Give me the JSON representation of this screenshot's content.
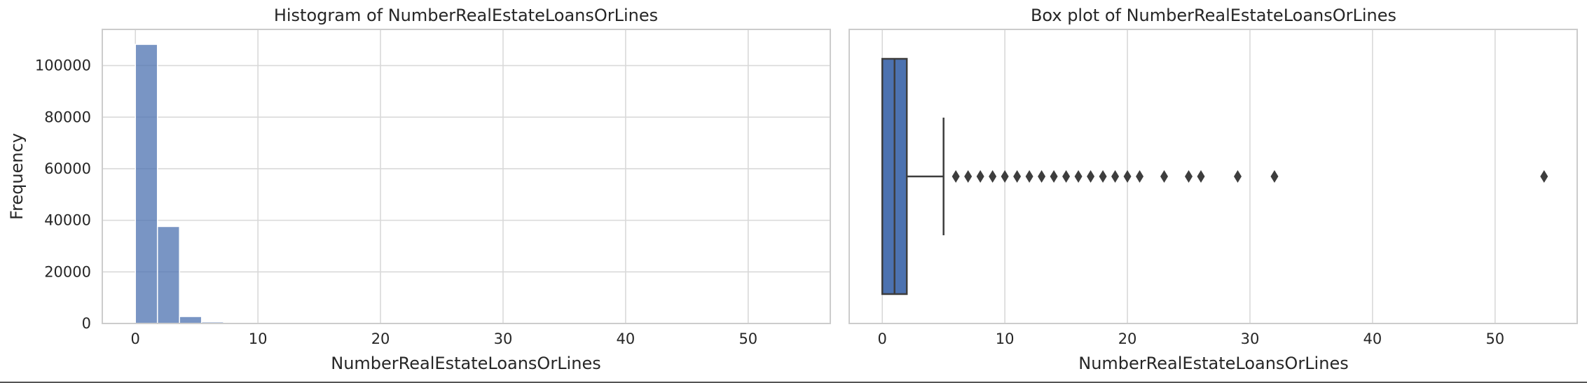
{
  "chart_data": [
    {
      "type": "histogram",
      "title": "Histogram of NumberRealEstateLoansOrLines",
      "xlabel": "NumberRealEstateLoansOrLines",
      "ylabel": "Frequency",
      "xlim": [
        -2.7,
        56.7
      ],
      "ylim": [
        0,
        114000
      ],
      "xticks": [
        0,
        10,
        20,
        30,
        40,
        50
      ],
      "yticks": [
        0,
        20000,
        40000,
        60000,
        80000,
        100000
      ],
      "bin_edges": [
        0,
        1.8,
        3.6,
        5.4,
        7.2,
        9.0,
        10.8,
        12.6,
        14.4,
        16.2,
        18.0,
        19.8,
        21.6,
        23.4,
        25.2,
        27.0,
        28.8,
        30.6,
        32.4,
        34.2,
        36.0,
        37.8,
        39.6,
        41.4,
        43.2,
        45.0,
        46.8,
        48.6,
        50.4,
        52.2,
        54.0
      ],
      "counts": [
        108200,
        37600,
        2700,
        600,
        180,
        90,
        40,
        20,
        12,
        6,
        4,
        3,
        2,
        1,
        1,
        0,
        1,
        0,
        1,
        0,
        0,
        0,
        0,
        0,
        0,
        0,
        0,
        0,
        0,
        1
      ],
      "color": "#4c72b0",
      "grid": true
    },
    {
      "type": "box",
      "title": "Box plot of NumberRealEstateLoansOrLines",
      "xlabel": "NumberRealEstateLoansOrLines",
      "xlim": [
        -2.7,
        56.7
      ],
      "xticks": [
        0,
        10,
        20,
        30,
        40,
        50
      ],
      "box": {
        "min": 0,
        "q1": 0,
        "median": 1,
        "q3": 2,
        "whisker_high": 5
      },
      "outliers": [
        6,
        7,
        8,
        9,
        10,
        11,
        12,
        13,
        14,
        15,
        16,
        17,
        18,
        19,
        20,
        21,
        23,
        25,
        26,
        29,
        32,
        54
      ],
      "color": "#4c72b0",
      "grid": true
    }
  ]
}
